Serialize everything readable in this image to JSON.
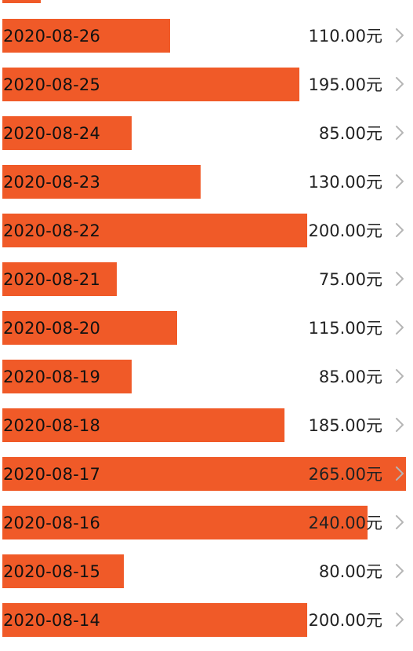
{
  "colors": {
    "bar": "#f05a28",
    "text": "#111111",
    "chevron": "#b5b5b5"
  },
  "list": {
    "max_amount": 265,
    "rows": [
      {
        "date": "2020-08-26",
        "amount": 110,
        "amount_label": "110.00元"
      },
      {
        "date": "2020-08-25",
        "amount": 195,
        "amount_label": "195.00元"
      },
      {
        "date": "2020-08-24",
        "amount": 85,
        "amount_label": "85.00元"
      },
      {
        "date": "2020-08-23",
        "amount": 130,
        "amount_label": "130.00元"
      },
      {
        "date": "2020-08-22",
        "amount": 200,
        "amount_label": "200.00元"
      },
      {
        "date": "2020-08-21",
        "amount": 75,
        "amount_label": "75.00元"
      },
      {
        "date": "2020-08-20",
        "amount": 115,
        "amount_label": "115.00元"
      },
      {
        "date": "2020-08-19",
        "amount": 85,
        "amount_label": "85.00元"
      },
      {
        "date": "2020-08-18",
        "amount": 185,
        "amount_label": "185.00元"
      },
      {
        "date": "2020-08-17",
        "amount": 265,
        "amount_label": "265.00元"
      },
      {
        "date": "2020-08-16",
        "amount": 240,
        "amount_label": "240.00元"
      },
      {
        "date": "2020-08-15",
        "amount": 80,
        "amount_label": "80.00元"
      },
      {
        "date": "2020-08-14",
        "amount": 200,
        "amount_label": "200.00元"
      }
    ]
  },
  "icons": {
    "row_chevron": "chevron-right-icon"
  }
}
